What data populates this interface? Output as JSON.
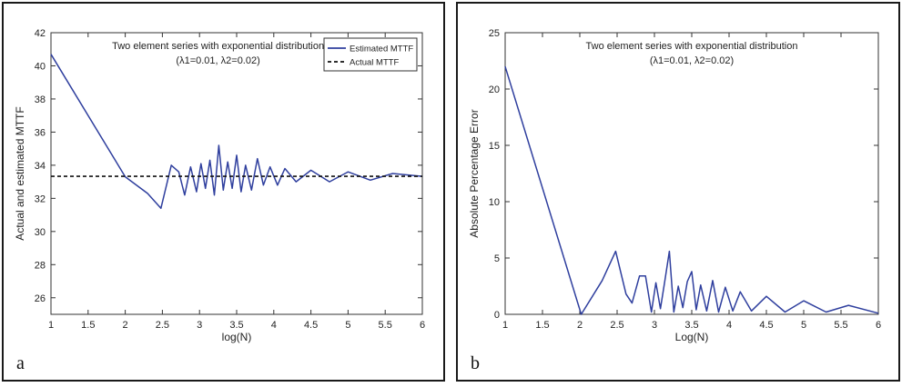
{
  "panels": [
    {
      "letter": "a",
      "chart_data": {
        "type": "line",
        "title": "Two element series with exponential distribution",
        "subtitle": "(λ1=0.01, λ2=0.02)",
        "xlabel": "log(N)",
        "ylabel": "Actual and estimated MTTF",
        "xlim": [
          1,
          6
        ],
        "ylim": [
          25,
          42
        ],
        "xticks": [
          "1",
          "1.5",
          "2",
          "2.5",
          "3",
          "3.5",
          "4",
          "4.5",
          "5",
          "5.5",
          "6"
        ],
        "yticks": [
          "26",
          "28",
          "30",
          "32",
          "34",
          "36",
          "38",
          "40",
          "42"
        ],
        "grid": false,
        "legend_position": "top-right",
        "series": [
          {
            "name": "Estimated MTTF",
            "color": "#2f3f9e",
            "style": "solid",
            "x": [
              1.0,
              2.0,
              2.3,
              2.48,
              2.62,
              2.72,
              2.8,
              2.88,
              2.96,
              3.02,
              3.08,
              3.14,
              3.2,
              3.26,
              3.32,
              3.38,
              3.44,
              3.5,
              3.56,
              3.62,
              3.7,
              3.78,
              3.86,
              3.95,
              4.05,
              4.15,
              4.3,
              4.5,
              4.75,
              5.0,
              5.3,
              5.6,
              6.0
            ],
            "y": [
              40.7,
              33.3,
              32.3,
              31.4,
              34.0,
              33.6,
              32.2,
              33.9,
              32.4,
              34.1,
              32.6,
              34.3,
              32.2,
              35.2,
              32.5,
              34.2,
              32.6,
              34.6,
              32.4,
              34.0,
              32.5,
              34.4,
              32.8,
              33.9,
              32.8,
              33.8,
              33.0,
              33.7,
              33.0,
              33.6,
              33.1,
              33.5,
              33.33
            ]
          },
          {
            "name": "Actual MTTF",
            "color": "#111111",
            "style": "dashed",
            "x": [
              1,
              6
            ],
            "y": [
              33.33,
              33.33
            ]
          }
        ]
      }
    },
    {
      "letter": "b",
      "chart_data": {
        "type": "line",
        "title": "Two element series with exponential distribution",
        "subtitle": "(λ1=0.01, λ2=0.02)",
        "xlabel": "Log(N)",
        "ylabel": "Absolute Percentage Error",
        "xlim": [
          1,
          6
        ],
        "ylim": [
          0,
          25
        ],
        "xticks": [
          "1",
          "1.5",
          "2",
          "2.5",
          "3",
          "3.5",
          "4",
          "4.5",
          "5",
          "5.5",
          "6"
        ],
        "yticks": [
          "0",
          "5",
          "10",
          "15",
          "20",
          "25"
        ],
        "grid": false,
        "series": [
          {
            "color": "#2f3f9e",
            "style": "solid",
            "x": [
              1.0,
              2.02,
              2.3,
              2.48,
              2.62,
              2.7,
              2.8,
              2.88,
              2.96,
              3.02,
              3.08,
              3.14,
              3.2,
              3.26,
              3.32,
              3.38,
              3.44,
              3.5,
              3.56,
              3.62,
              3.7,
              3.78,
              3.86,
              3.95,
              4.05,
              4.15,
              4.3,
              4.5,
              4.75,
              5.0,
              5.3,
              5.6,
              6.0
            ],
            "y": [
              22.0,
              0.0,
              3.0,
              5.6,
              1.8,
              1.0,
              3.4,
              3.4,
              0.2,
              2.8,
              0.5,
              3.0,
              5.6,
              0.2,
              2.5,
              0.6,
              2.9,
              3.8,
              0.4,
              2.6,
              0.3,
              3.0,
              0.2,
              2.4,
              0.3,
              2.0,
              0.3,
              1.6,
              0.2,
              1.2,
              0.2,
              0.8,
              0.1
            ]
          }
        ]
      }
    }
  ]
}
